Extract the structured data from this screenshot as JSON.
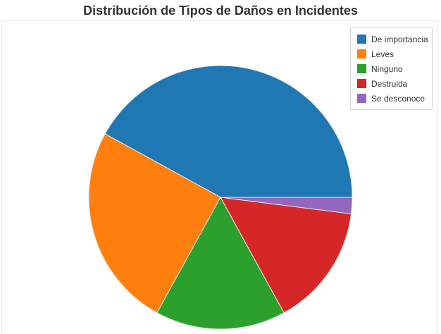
{
  "chart_data": {
    "type": "pie",
    "title": "Distribución de Tipos de Daños en Incidentes",
    "categories": [
      "De importancia",
      "Leves",
      "Ninguno",
      "Destruida",
      "Se desconoce"
    ],
    "values": [
      42,
      25,
      16,
      15,
      2
    ],
    "unit": "percent (estimated)",
    "colors": [
      "#1f77b4",
      "#ff7f0e",
      "#2ca02c",
      "#d62728",
      "#9467bd"
    ],
    "start_direction": "3 o'clock, counter-clockwise",
    "legend_position": "top-right"
  }
}
